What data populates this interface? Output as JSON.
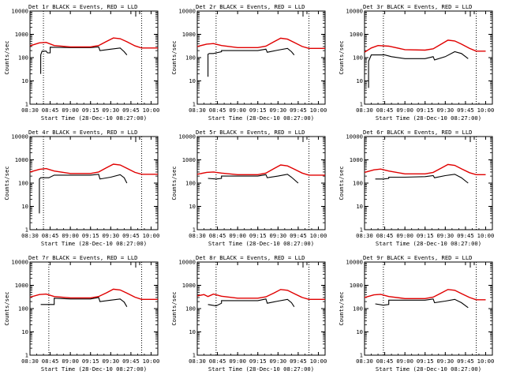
{
  "figure": {
    "xlabel": "Start Time (28-Dec-10 08:27:00)",
    "ylabel": "Counts/sec",
    "xticks": [
      "08:30",
      "08:45",
      "09:00",
      "09:15",
      "09:30",
      "09:45",
      "10:00"
    ],
    "yticks": [
      "1",
      "10",
      "100",
      "1000",
      "10000"
    ],
    "colors": {
      "events": "#000000",
      "lld": "#e00000",
      "axes": "#000000",
      "background": "#ffffff"
    }
  },
  "chart_data": [
    {
      "type": "line",
      "title": "Det 1r BLACK = Events, RED = LLD",
      "xlim": [
        "08:30",
        "10:05"
      ],
      "ylim": [
        1,
        10000
      ],
      "yscale": "log",
      "vlines": [
        "08:40",
        "09:53"
      ],
      "series": [
        {
          "name": "Events",
          "color": "#000000",
          "x": [
            "08:38",
            "08:38",
            "08:39",
            "08:42",
            "08:43",
            "08:45",
            "08:45",
            "09:00",
            "09:15",
            "09:21",
            "09:22",
            "09:30",
            "09:37",
            "09:40",
            "09:42"
          ],
          "y": [
            20,
            130,
            190,
            190,
            160,
            160,
            280,
            270,
            270,
            290,
            200,
            230,
            260,
            180,
            130
          ]
        },
        {
          "name": "LLD",
          "color": "#e00000",
          "x": [
            "08:30",
            "08:37",
            "08:42",
            "08:48",
            "09:00",
            "09:15",
            "09:21",
            "09:27",
            "09:32",
            "09:37",
            "09:42",
            "09:48",
            "09:53",
            "10:00",
            "10:05"
          ],
          "y": [
            320,
            430,
            450,
            330,
            290,
            290,
            330,
            500,
            700,
            650,
            480,
            320,
            260,
            260,
            260
          ]
        }
      ]
    },
    {
      "type": "line",
      "title": "Det 2r BLACK = Events, RED = LLD",
      "xlim": [
        "08:30",
        "10:05"
      ],
      "ylim": [
        1,
        10000
      ],
      "yscale": "log",
      "vlines": [
        "08:44",
        "09:53"
      ],
      "series": [
        {
          "name": "Events",
          "color": "#000000",
          "x": [
            "08:38",
            "08:38",
            "08:39",
            "08:42",
            "08:44",
            "08:48",
            "08:48",
            "09:00",
            "09:15",
            "09:21",
            "09:22",
            "09:30",
            "09:37",
            "09:40",
            "09:42"
          ],
          "y": [
            15,
            140,
            150,
            150,
            160,
            180,
            200,
            200,
            200,
            230,
            170,
            210,
            250,
            180,
            130
          ]
        },
        {
          "name": "LLD",
          "color": "#e00000",
          "x": [
            "08:30",
            "08:37",
            "08:42",
            "08:48",
            "09:00",
            "09:15",
            "09:21",
            "09:27",
            "09:32",
            "09:37",
            "09:42",
            "09:48",
            "09:53",
            "10:00",
            "10:05"
          ],
          "y": [
            300,
            380,
            400,
            330,
            270,
            270,
            310,
            480,
            680,
            620,
            450,
            300,
            250,
            250,
            250
          ]
        }
      ]
    },
    {
      "type": "line",
      "title": "Det 3r BLACK = Events, RED = LLD",
      "xlim": [
        "08:30",
        "10:05"
      ],
      "ylim": [
        1,
        10000
      ],
      "yscale": "log",
      "vlines": [
        "08:44",
        "09:53"
      ],
      "series": [
        {
          "name": "Events",
          "color": "#000000",
          "x": [
            "08:33",
            "08:33",
            "08:35",
            "08:39",
            "08:39",
            "08:45",
            "08:50",
            "09:00",
            "09:15",
            "09:21",
            "09:22",
            "09:30",
            "09:37",
            "09:42",
            "09:47"
          ],
          "y": [
            5,
            70,
            130,
            130,
            130,
            130,
            110,
            90,
            90,
            110,
            80,
            110,
            180,
            150,
            90
          ]
        },
        {
          "name": "LLD",
          "color": "#e00000",
          "x": [
            "08:30",
            "08:35",
            "08:40",
            "08:48",
            "09:00",
            "09:15",
            "09:21",
            "09:27",
            "09:32",
            "09:37",
            "09:42",
            "09:48",
            "09:53",
            "10:00"
          ],
          "y": [
            170,
            260,
            330,
            310,
            220,
            210,
            240,
            380,
            560,
            520,
            380,
            250,
            190,
            190
          ]
        }
      ]
    },
    {
      "type": "line",
      "title": "Det 4r BLACK = Events, RED = LLD",
      "xlim": [
        "08:30",
        "10:05"
      ],
      "ylim": [
        1,
        10000
      ],
      "yscale": "log",
      "vlines": [
        "08:40",
        "09:53"
      ],
      "series": [
        {
          "name": "Events",
          "color": "#000000",
          "x": [
            "08:37",
            "08:37",
            "08:38",
            "08:44",
            "08:48",
            "09:00",
            "09:15",
            "09:21",
            "09:22",
            "09:30",
            "09:37",
            "09:40",
            "09:42"
          ],
          "y": [
            5,
            150,
            170,
            170,
            220,
            220,
            220,
            240,
            150,
            180,
            230,
            170,
            100
          ]
        },
        {
          "name": "LLD",
          "color": "#e00000",
          "x": [
            "08:30",
            "08:37",
            "08:42",
            "08:48",
            "09:00",
            "09:15",
            "09:21",
            "09:27",
            "09:32",
            "09:37",
            "09:42",
            "09:48",
            "09:53",
            "10:00",
            "10:05"
          ],
          "y": [
            300,
            390,
            420,
            330,
            260,
            260,
            300,
            460,
            650,
            600,
            430,
            290,
            240,
            240,
            240
          ]
        }
      ]
    },
    {
      "type": "line",
      "title": "Det 5r BLACK = Events, RED = LLD",
      "xlim": [
        "08:30",
        "10:05"
      ],
      "ylim": [
        1,
        10000
      ],
      "yscale": "log",
      "vlines": [
        "08:44",
        "09:53"
      ],
      "series": [
        {
          "name": "Events",
          "color": "#000000",
          "x": [
            "08:38",
            "08:44",
            "08:48",
            "08:48",
            "09:00",
            "09:15",
            "09:21",
            "09:22",
            "09:30",
            "09:37",
            "09:40",
            "09:45"
          ],
          "y": [
            160,
            150,
            160,
            200,
            200,
            200,
            230,
            170,
            200,
            240,
            180,
            100
          ]
        },
        {
          "name": "LLD",
          "color": "#e00000",
          "x": [
            "08:30",
            "08:37",
            "08:42",
            "08:48",
            "09:00",
            "09:15",
            "09:21",
            "09:27",
            "09:32",
            "09:37",
            "09:42",
            "09:48",
            "09:53",
            "10:00",
            "10:05"
          ],
          "y": [
            240,
            290,
            300,
            270,
            230,
            230,
            270,
            420,
            600,
            550,
            400,
            270,
            220,
            220,
            220
          ]
        }
      ]
    },
    {
      "type": "line",
      "title": "Det 6r BLACK = Events, RED = LLD",
      "xlim": [
        "08:30",
        "10:05"
      ],
      "ylim": [
        1,
        10000
      ],
      "yscale": "log",
      "vlines": [
        "08:44",
        "09:53"
      ],
      "series": [
        {
          "name": "Events",
          "color": "#000000",
          "x": [
            "08:38",
            "08:44",
            "08:48",
            "08:48",
            "09:00",
            "09:15",
            "09:21",
            "09:22",
            "09:30",
            "09:37",
            "09:42",
            "09:47"
          ],
          "y": [
            150,
            150,
            160,
            180,
            180,
            190,
            210,
            170,
            210,
            240,
            170,
            100
          ]
        },
        {
          "name": "LLD",
          "color": "#e00000",
          "x": [
            "08:30",
            "08:37",
            "08:42",
            "08:48",
            "09:00",
            "09:15",
            "09:21",
            "09:27",
            "09:32",
            "09:37",
            "09:42",
            "09:48",
            "09:53",
            "10:00"
          ],
          "y": [
            290,
            370,
            400,
            330,
            250,
            250,
            290,
            440,
            630,
            580,
            410,
            280,
            230,
            230
          ]
        }
      ]
    },
    {
      "type": "line",
      "title": "Det 7r BLACK = Events, RED = LLD",
      "xlim": [
        "08:30",
        "10:05"
      ],
      "ylim": [
        1,
        10000
      ],
      "yscale": "log",
      "vlines": [
        "08:44",
        "09:53"
      ],
      "series": [
        {
          "name": "Events",
          "color": "#000000",
          "x": [
            "08:38",
            "08:44",
            "08:48",
            "08:48",
            "09:00",
            "09:15",
            "09:21",
            "09:22",
            "09:30",
            "09:37",
            "09:40",
            "09:42"
          ],
          "y": [
            150,
            150,
            150,
            280,
            260,
            260,
            300,
            200,
            230,
            260,
            190,
            120
          ]
        },
        {
          "name": "LLD",
          "color": "#e00000",
          "x": [
            "08:30",
            "08:37",
            "08:42",
            "08:48",
            "09:00",
            "09:15",
            "09:21",
            "09:27",
            "09:32",
            "09:37",
            "09:42",
            "09:48",
            "09:53",
            "10:00",
            "10:05"
          ],
          "y": [
            310,
            400,
            420,
            330,
            290,
            290,
            330,
            480,
            680,
            630,
            460,
            310,
            250,
            250,
            250
          ]
        }
      ]
    },
    {
      "type": "line",
      "title": "Det 8r BLACK = Events, RED = LLD",
      "xlim": [
        "08:30",
        "10:05"
      ],
      "ylim": [
        1,
        10000
      ],
      "yscale": "log",
      "vlines": [
        "08:44",
        "09:53"
      ],
      "series": [
        {
          "name": "Events",
          "color": "#000000",
          "x": [
            "08:38",
            "08:44",
            "08:48",
            "08:48",
            "09:00",
            "09:15",
            "09:21",
            "09:22",
            "09:30",
            "09:37",
            "09:40",
            "09:42"
          ],
          "y": [
            150,
            130,
            170,
            220,
            220,
            220,
            260,
            170,
            210,
            250,
            180,
            120
          ]
        },
        {
          "name": "LLD",
          "color": "#e00000",
          "x": [
            "08:30",
            "08:35",
            "08:38",
            "08:42",
            "08:48",
            "09:00",
            "09:15",
            "09:21",
            "09:27",
            "09:32",
            "09:37",
            "09:42",
            "09:48",
            "09:53",
            "10:00",
            "10:05"
          ],
          "y": [
            350,
            400,
            330,
            420,
            340,
            280,
            280,
            320,
            470,
            660,
            610,
            440,
            300,
            250,
            250,
            250
          ]
        }
      ]
    },
    {
      "type": "line",
      "title": "Det 9r BLACK = Events, RED = LLD",
      "xlim": [
        "08:30",
        "10:05"
      ],
      "ylim": [
        1,
        10000
      ],
      "yscale": "log",
      "vlines": [
        "08:44",
        "09:53"
      ],
      "series": [
        {
          "name": "Events",
          "color": "#000000",
          "x": [
            "08:38",
            "08:44",
            "08:48",
            "08:48",
            "09:00",
            "09:15",
            "09:21",
            "09:22",
            "09:30",
            "09:37",
            "09:42",
            "09:47"
          ],
          "y": [
            160,
            140,
            150,
            230,
            230,
            230,
            260,
            180,
            210,
            250,
            180,
            110
          ]
        },
        {
          "name": "LLD",
          "color": "#e00000",
          "x": [
            "08:30",
            "08:37",
            "08:42",
            "08:48",
            "09:00",
            "09:15",
            "09:21",
            "09:27",
            "09:32",
            "09:37",
            "09:42",
            "09:48",
            "09:53",
            "10:00"
          ],
          "y": [
            300,
            390,
            410,
            330,
            270,
            270,
            310,
            470,
            660,
            610,
            440,
            300,
            240,
            240
          ]
        }
      ]
    }
  ]
}
